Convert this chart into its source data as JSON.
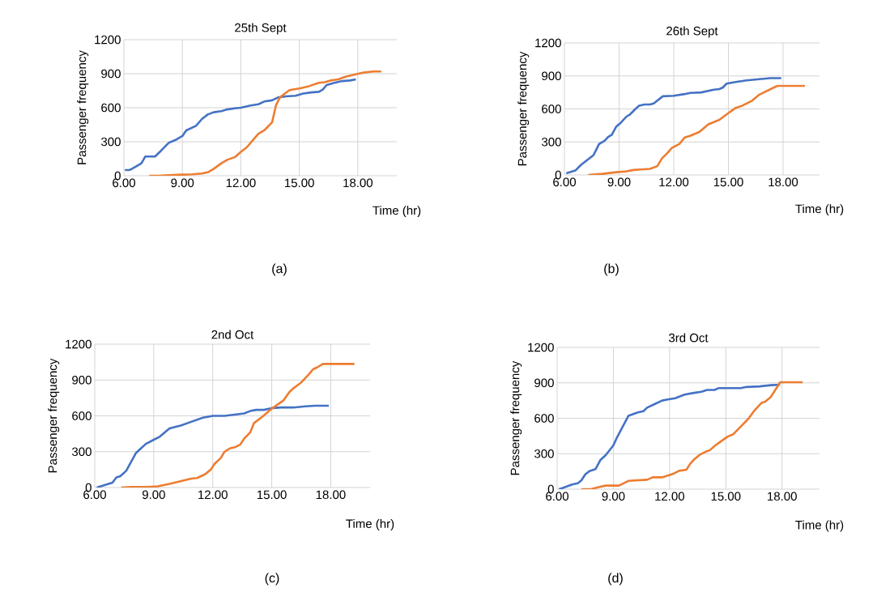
{
  "chart_data": [
    {
      "type": "line",
      "title": "25th Sept",
      "xlabel": "Time (hr)",
      "ylabel": "Passenger frequency",
      "annotations": [
        "(a)"
      ],
      "grid": true,
      "xlim": [
        6,
        20
      ],
      "ylim": [
        0,
        1200
      ],
      "xticks": [
        {
          "value": 6,
          "label": "6.00"
        },
        {
          "value": 9,
          "label": "9.00"
        },
        {
          "value": 12,
          "label": "12.00"
        },
        {
          "value": 15,
          "label": "15.00"
        },
        {
          "value": 18,
          "label": "18.00"
        }
      ],
      "yticks": [
        0,
        300,
        600,
        900,
        1200
      ],
      "series": [
        {
          "color": "#4472c4",
          "x": [
            6.05,
            6.3,
            6.6,
            6.9,
            7.1,
            7.6,
            7.9,
            8.3,
            8.7,
            9.0,
            9.2,
            9.7,
            10.0,
            10.3,
            10.6,
            11.0,
            11.3,
            11.7,
            12.0,
            12.5,
            12.9,
            13.2,
            13.6,
            13.9,
            14.3,
            14.8,
            15.2,
            15.6,
            16.0,
            16.2,
            16.4,
            16.8,
            17.2,
            17.6,
            17.9
          ],
          "values": [
            50,
            50,
            80,
            110,
            170,
            170,
            220,
            290,
            320,
            350,
            400,
            440,
            500,
            540,
            560,
            570,
            585,
            595,
            600,
            620,
            630,
            655,
            665,
            690,
            700,
            705,
            725,
            735,
            740,
            760,
            800,
            820,
            835,
            840,
            850
          ]
        },
        {
          "color": "#ed7d31",
          "x": [
            7.3,
            7.8,
            8.3,
            9.0,
            9.5,
            10.0,
            10.3,
            10.6,
            11.0,
            11.3,
            11.7,
            12.0,
            12.3,
            12.6,
            12.9,
            13.2,
            13.6,
            13.8,
            14.0,
            14.3,
            14.5,
            15.0,
            15.5,
            16.0,
            16.3,
            16.6,
            17.0,
            17.4,
            17.9,
            18.3,
            18.8,
            19.2
          ],
          "values": [
            0,
            0,
            5,
            10,
            12,
            20,
            30,
            60,
            110,
            140,
            165,
            210,
            250,
            310,
            370,
            400,
            470,
            620,
            690,
            730,
            755,
            770,
            790,
            820,
            825,
            840,
            850,
            875,
            895,
            910,
            920,
            920
          ]
        }
      ]
    },
    {
      "type": "line",
      "title": "26th Sept",
      "xlabel": "Time (hr)",
      "ylabel": "Passenger frequency",
      "annotations": [
        "(b)"
      ],
      "grid": true,
      "xlim": [
        6,
        20
      ],
      "ylim": [
        0,
        1200
      ],
      "xticks": [
        {
          "value": 6,
          "label": "6.00"
        },
        {
          "value": 9,
          "label": "9.00"
        },
        {
          "value": 12,
          "label": "12.00"
        },
        {
          "value": 15,
          "label": "15.00"
        },
        {
          "value": 18,
          "label": "18.00"
        }
      ],
      "yticks": [
        0,
        300,
        600,
        900,
        1200
      ],
      "series": [
        {
          "color": "#4472c4",
          "x": [
            6.1,
            6.6,
            6.9,
            7.6,
            7.7,
            7.9,
            8.2,
            8.4,
            8.6,
            8.85,
            9.1,
            9.4,
            9.6,
            9.9,
            10.1,
            10.4,
            10.7,
            10.9,
            11.4,
            12.0,
            12.6,
            12.9,
            13.5,
            14.2,
            14.5,
            14.7,
            14.9,
            15.4,
            16.0,
            16.7,
            17.3,
            17.9
          ],
          "values": [
            15,
            40,
            90,
            180,
            215,
            280,
            310,
            345,
            365,
            440,
            475,
            530,
            550,
            600,
            630,
            640,
            640,
            650,
            715,
            720,
            735,
            745,
            750,
            775,
            780,
            795,
            830,
            845,
            860,
            870,
            880,
            880
          ]
        },
        {
          "color": "#ed7d31",
          "x": [
            7.3,
            8.1,
            8.85,
            9.3,
            9.8,
            10.2,
            10.7,
            11.1,
            11.35,
            11.6,
            11.9,
            12.3,
            12.6,
            12.9,
            13.4,
            13.9,
            14.5,
            14.9,
            15.4,
            15.7,
            16.3,
            16.7,
            17.5,
            17.7,
            19.2
          ],
          "values": [
            0,
            10,
            25,
            30,
            45,
            50,
            55,
            80,
            150,
            190,
            245,
            280,
            340,
            355,
            390,
            460,
            500,
            550,
            610,
            625,
            675,
            730,
            795,
            810,
            810
          ]
        }
      ]
    },
    {
      "type": "line",
      "title": "2nd Oct",
      "xlabel": "Time (hr)",
      "ylabel": "Passenger frequency",
      "annotations": [
        "(c)"
      ],
      "grid": true,
      "xlim": [
        6,
        20
      ],
      "ylim": [
        0,
        1200
      ],
      "xticks": [
        {
          "value": 6,
          "label": "6.00"
        },
        {
          "value": 9,
          "label": "9.00"
        },
        {
          "value": 12,
          "label": "12.00"
        },
        {
          "value": 15,
          "label": "15.00"
        },
        {
          "value": 18,
          "label": "18.00"
        }
      ],
      "yticks": [
        0,
        300,
        600,
        900,
        1200
      ],
      "series": [
        {
          "color": "#4472c4",
          "x": [
            6.1,
            6.3,
            6.9,
            7.1,
            7.3,
            7.6,
            8.1,
            8.3,
            8.6,
            9.0,
            9.3,
            9.8,
            10.4,
            10.9,
            11.5,
            12.0,
            12.6,
            13.1,
            13.6,
            13.9,
            14.2,
            14.6,
            15.0,
            15.5,
            16.1,
            16.7,
            17.2,
            17.9
          ],
          "values": [
            0,
            10,
            40,
            85,
            95,
            140,
            290,
            320,
            365,
            400,
            425,
            495,
            520,
            550,
            585,
            600,
            600,
            610,
            620,
            640,
            650,
            650,
            665,
            670,
            670,
            680,
            685,
            685
          ]
        },
        {
          "color": "#ed7d31",
          "x": [
            7.35,
            7.9,
            8.7,
            9.2,
            9.8,
            10.4,
            10.9,
            11.2,
            11.6,
            11.9,
            12.1,
            12.4,
            12.6,
            12.9,
            13.1,
            13.4,
            13.6,
            13.9,
            14.1,
            14.5,
            15.0,
            15.6,
            15.9,
            16.1,
            16.5,
            16.9,
            17.1,
            17.3,
            17.6,
            19.2
          ],
          "values": [
            0,
            5,
            5,
            10,
            30,
            55,
            75,
            80,
            110,
            150,
            200,
            245,
            300,
            330,
            335,
            360,
            410,
            460,
            540,
            590,
            660,
            730,
            800,
            830,
            880,
            950,
            990,
            1005,
            1035,
            1035
          ]
        }
      ]
    },
    {
      "type": "line",
      "title": "3rd Oct",
      "xlabel": "Time (hr)",
      "ylabel": "Passenger frequency",
      "annotations": [
        "(d)"
      ],
      "grid": true,
      "xlim": [
        6,
        20
      ],
      "ylim": [
        0,
        1200
      ],
      "xticks": [
        {
          "value": 6,
          "label": "6.00"
        },
        {
          "value": 9,
          "label": "9.00"
        },
        {
          "value": 12,
          "label": "12.00"
        },
        {
          "value": 15,
          "label": "15.00"
        },
        {
          "value": 18,
          "label": "18.00"
        }
      ],
      "yticks": [
        0,
        300,
        600,
        900,
        1200
      ],
      "series": [
        {
          "color": "#4472c4",
          "x": [
            6.1,
            6.3,
            6.8,
            7.1,
            7.3,
            7.5,
            7.75,
            8.05,
            8.3,
            8.6,
            9.0,
            9.2,
            9.8,
            10.3,
            10.6,
            10.8,
            11.2,
            11.6,
            11.9,
            12.3,
            12.8,
            13.3,
            13.7,
            14.0,
            14.4,
            14.6,
            15.3,
            15.8,
            16.1,
            16.8,
            17.4,
            17.9
          ],
          "values": [
            0,
            10,
            40,
            50,
            75,
            125,
            155,
            170,
            245,
            290,
            370,
            440,
            620,
            650,
            660,
            690,
            720,
            750,
            760,
            770,
            800,
            815,
            825,
            840,
            840,
            855,
            855,
            855,
            865,
            870,
            880,
            885
          ]
        },
        {
          "color": "#ed7d31",
          "x": [
            7.3,
            7.8,
            8.3,
            8.6,
            9.3,
            9.8,
            10.3,
            10.8,
            11.1,
            11.6,
            12.0,
            12.2,
            12.5,
            12.9,
            13.1,
            13.3,
            13.6,
            13.9,
            14.15,
            14.4,
            14.7,
            15.1,
            15.4,
            15.8,
            16.2,
            16.5,
            16.9,
            17.1,
            17.4,
            17.9,
            19.1
          ],
          "values": [
            0,
            0,
            20,
            30,
            30,
            70,
            75,
            80,
            100,
            100,
            120,
            130,
            155,
            165,
            215,
            250,
            290,
            315,
            330,
            365,
            400,
            445,
            465,
            530,
            595,
            660,
            730,
            740,
            780,
            905,
            905
          ]
        }
      ]
    }
  ]
}
